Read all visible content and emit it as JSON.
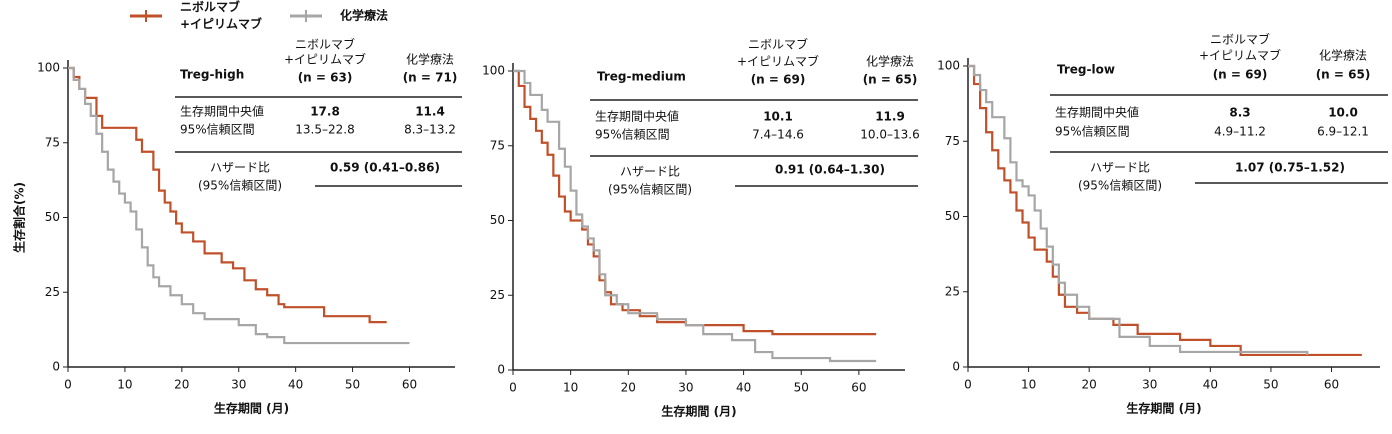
{
  "legend": [
    {
      "name": [
        "ニボルマブ",
        "+イピリムマブ"
      ],
      "color": "#c0502a"
    },
    {
      "name": [
        "化学療法"
      ],
      "color": "#a6a6a6"
    }
  ],
  "chart_data": [
    {
      "type": "line",
      "step": true,
      "group": "Treg-high",
      "y_label": "生存割合(%)",
      "x_label": "生存期間 (月)",
      "xlim": [
        0,
        68
      ],
      "ylim": [
        0,
        100
      ],
      "xticks": [
        0,
        10,
        20,
        30,
        40,
        50,
        60
      ],
      "yticks": [
        0,
        25,
        50,
        75,
        100
      ],
      "table": {
        "columns": [
          [
            "ニボルマブ",
            "+イピリムマブ",
            "(n = 63)"
          ],
          [
            "化学療法",
            "(n = 71)"
          ]
        ],
        "rows": [
          [
            "生存期間中央値",
            "17.8",
            "11.4"
          ],
          [
            "95%信頼区間",
            "13.5–22.8",
            "8.3–13.2"
          ]
        ],
        "hazard": {
          "label": [
            "ハザード比",
            "(95%信頼区間)"
          ],
          "value": "0.59 (0.41–0.86)"
        }
      },
      "series": [
        {
          "color": "#c0502a",
          "x": [
            0,
            1,
            2,
            3,
            5,
            6,
            12,
            13,
            15,
            16,
            17,
            18,
            19,
            20,
            22,
            24,
            27,
            29,
            31,
            33,
            35,
            37,
            38,
            45,
            53,
            56
          ],
          "values": [
            100,
            97,
            93,
            90,
            84,
            80,
            76,
            72,
            66,
            59,
            55,
            52,
            48,
            45,
            42,
            38,
            35,
            33,
            29,
            26,
            24,
            21,
            20,
            17,
            15,
            15
          ]
        },
        {
          "color": "#a6a6a6",
          "x": [
            0,
            1,
            2,
            3,
            4,
            5,
            6,
            7,
            8,
            9,
            10,
            11,
            12,
            13,
            14,
            15,
            16,
            18,
            20,
            22,
            24,
            30,
            33,
            35,
            38,
            60
          ],
          "values": [
            100,
            96,
            93,
            88,
            84,
            78,
            72,
            66,
            62,
            58,
            55,
            52,
            46,
            40,
            34,
            30,
            27,
            24,
            21,
            18,
            16,
            14,
            11,
            10,
            8,
            8
          ]
        }
      ]
    },
    {
      "type": "line",
      "step": true,
      "group": "Treg-medium",
      "x_label": "生存期間 (月)",
      "xlim": [
        0,
        68
      ],
      "ylim": [
        0,
        100
      ],
      "xticks": [
        0,
        10,
        20,
        30,
        40,
        50,
        60
      ],
      "yticks": [
        0,
        25,
        50,
        75,
        100
      ],
      "table": {
        "columns": [
          [
            "ニボルマブ",
            "+イピリムマブ",
            "(n = 69)"
          ],
          [
            "化学療法",
            "(n = 65)"
          ]
        ],
        "rows": [
          [
            "生存期間中央値",
            "10.1",
            "11.9"
          ],
          [
            "95%信頼区間",
            "7.4–14.6",
            "10.0–13.6"
          ]
        ],
        "hazard": {
          "label": [
            "ハザード比",
            "(95%信頼区間)"
          ],
          "value": "0.91 (0.64–1.30)"
        }
      },
      "series": [
        {
          "color": "#c0502a",
          "x": [
            0,
            1,
            2,
            3,
            4,
            5,
            6,
            7,
            8,
            9,
            10,
            12,
            13,
            14,
            15,
            16,
            17,
            19,
            22,
            25,
            30,
            40,
            45,
            63
          ],
          "values": [
            100,
            95,
            88,
            84,
            80,
            76,
            72,
            65,
            58,
            53,
            50,
            47,
            42,
            38,
            30,
            26,
            22,
            20,
            18,
            16,
            15,
            13,
            12,
            12
          ]
        },
        {
          "color": "#a6a6a6",
          "x": [
            0,
            2,
            3,
            5,
            6,
            8,
            9,
            10,
            11,
            12,
            13,
            14,
            15,
            16,
            18,
            20,
            25,
            30,
            33,
            38,
            42,
            45,
            55,
            63
          ],
          "values": [
            100,
            96,
            92,
            87,
            83,
            74,
            68,
            60,
            52,
            48,
            44,
            40,
            32,
            25,
            22,
            19,
            17,
            15,
            12,
            10,
            6,
            4,
            3,
            3
          ]
        }
      ]
    },
    {
      "type": "line",
      "step": true,
      "group": "Treg-low",
      "x_label": "生存期間 (月)",
      "xlim": [
        0,
        68
      ],
      "ylim": [
        0,
        100
      ],
      "xticks": [
        0,
        10,
        20,
        30,
        40,
        50,
        60
      ],
      "yticks": [
        0,
        25,
        50,
        75,
        100
      ],
      "table": {
        "columns": [
          [
            "ニボルマブ",
            "+イピリムマブ",
            "(n = 69)"
          ],
          [
            "化学療法",
            "(n = 65)"
          ]
        ],
        "rows": [
          [
            "生存期間中央値",
            "8.3",
            "10.0"
          ],
          [
            "95%信頼区間",
            "4.9–11.2",
            "6.9–12.1"
          ]
        ],
        "hazard": {
          "label": [
            "ハザード比",
            "(95%信頼区間)"
          ],
          "value": "1.07 (0.75–1.52)"
        }
      },
      "series": [
        {
          "color": "#c0502a",
          "x": [
            0,
            1,
            2,
            3,
            4,
            5,
            6,
            7,
            8,
            9,
            10,
            11,
            13,
            14,
            15,
            16,
            18,
            20,
            24,
            28,
            35,
            40,
            45,
            65
          ],
          "values": [
            100,
            94,
            86,
            78,
            72,
            66,
            62,
            58,
            52,
            48,
            43,
            39,
            35,
            30,
            24,
            20,
            18,
            16,
            14,
            11,
            9,
            7,
            4,
            4
          ]
        },
        {
          "color": "#a6a6a6",
          "x": [
            0,
            1,
            2,
            3,
            4,
            6,
            7,
            8,
            9,
            10,
            11,
            12,
            13,
            14,
            15,
            16,
            18,
            20,
            25,
            30,
            35,
            40,
            56
          ],
          "values": [
            100,
            97,
            92,
            88,
            83,
            76,
            68,
            62,
            60,
            57,
            52,
            46,
            40,
            34,
            28,
            24,
            20,
            16,
            10,
            7,
            5,
            5,
            4
          ]
        }
      ]
    }
  ]
}
